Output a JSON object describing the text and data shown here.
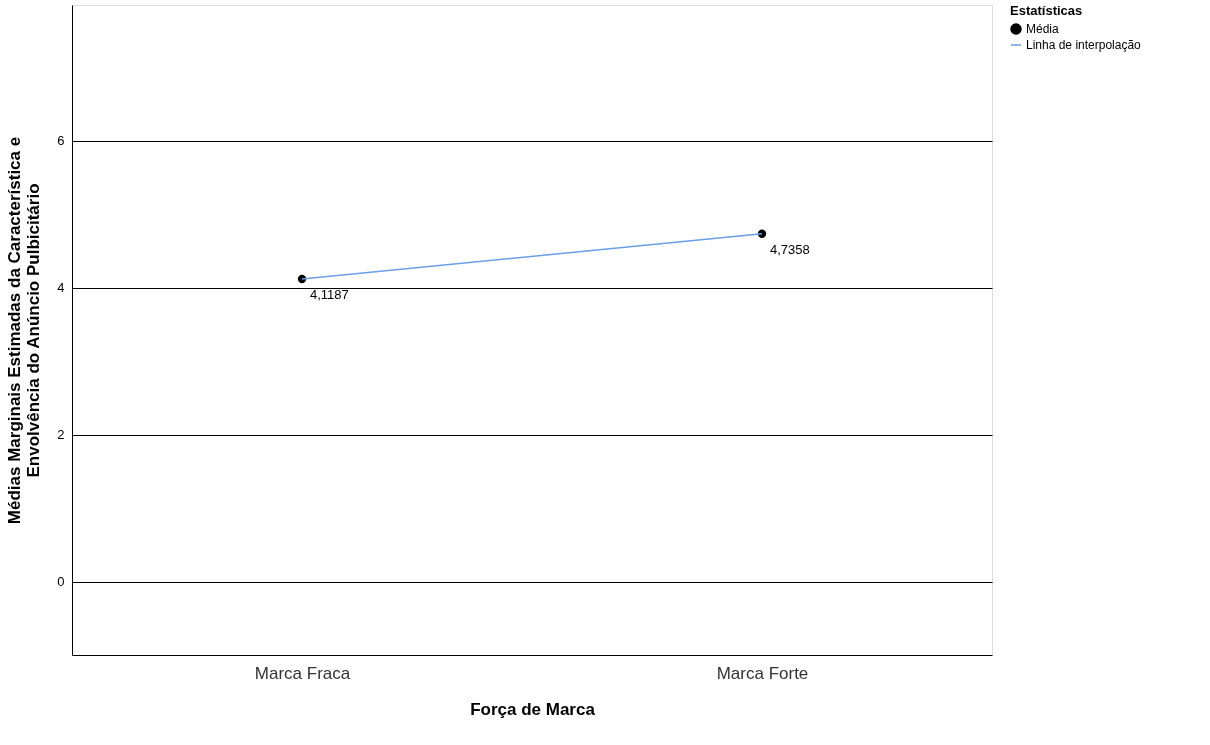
{
  "chart_data": {
    "type": "line",
    "xlabel": "Força de Marca",
    "ylabel": "Médias Marginais Estimadas da Característica e\nEnvolvência do Anúncio Pulbicitário",
    "legend_title": "Estatísticas",
    "categories": [
      "Marca Fraca",
      "Marca Forte"
    ],
    "series": [
      {
        "name": "Média",
        "type": "scatter",
        "color": "#000000",
        "marker": "circle",
        "values": [
          4.1187,
          4.7358
        ],
        "value_labels": [
          "4,1187",
          "4,7358"
        ]
      },
      {
        "name": "Linha de interpolação",
        "color": "#6a9ee8",
        "values": [
          4.1187,
          4.7358
        ]
      }
    ],
    "ylim": [
      -1,
      7.85
    ],
    "yticks": [
      0,
      2,
      4,
      6
    ],
    "grid": "y",
    "legend": "top right"
  }
}
